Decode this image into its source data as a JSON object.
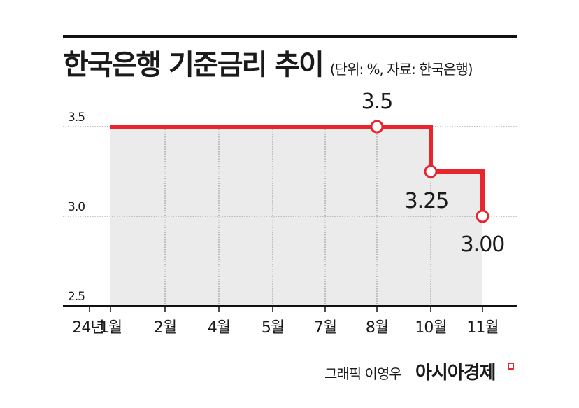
{
  "header": {
    "title": "한국은행 기준금리 추이",
    "subtitle": "(단위: %, 자료: 한국은행)"
  },
  "chart_data": {
    "type": "line",
    "step": true,
    "ylim": [
      2.5,
      3.5
    ],
    "yticks": [
      "3.5",
      "3.0",
      "2.5"
    ],
    "ytick_values": [
      3.5,
      3.0,
      2.5
    ],
    "categories": [
      "24년",
      "1월",
      "2월",
      "4월",
      "5월",
      "7월",
      "8월",
      "10월",
      "11월"
    ],
    "series": [
      {
        "values": [
          3.5,
          3.5,
          3.5,
          3.5,
          3.5,
          3.5,
          3.5,
          3.25,
          3.0
        ]
      }
    ],
    "markers": [
      {
        "category": "8월",
        "value": 3.5,
        "label": "3.5"
      },
      {
        "category": "10월",
        "value": 3.25,
        "label": "3.25"
      },
      {
        "category": "11월",
        "value": 3.0,
        "label": "3.00"
      }
    ],
    "grid": true,
    "colors": {
      "line": "#e8252c",
      "area": "#ebebeb",
      "grid": "#888888",
      "axis": "#111111"
    }
  },
  "footer": {
    "credit": "그래픽 이영우",
    "brand": "아시아경제"
  }
}
